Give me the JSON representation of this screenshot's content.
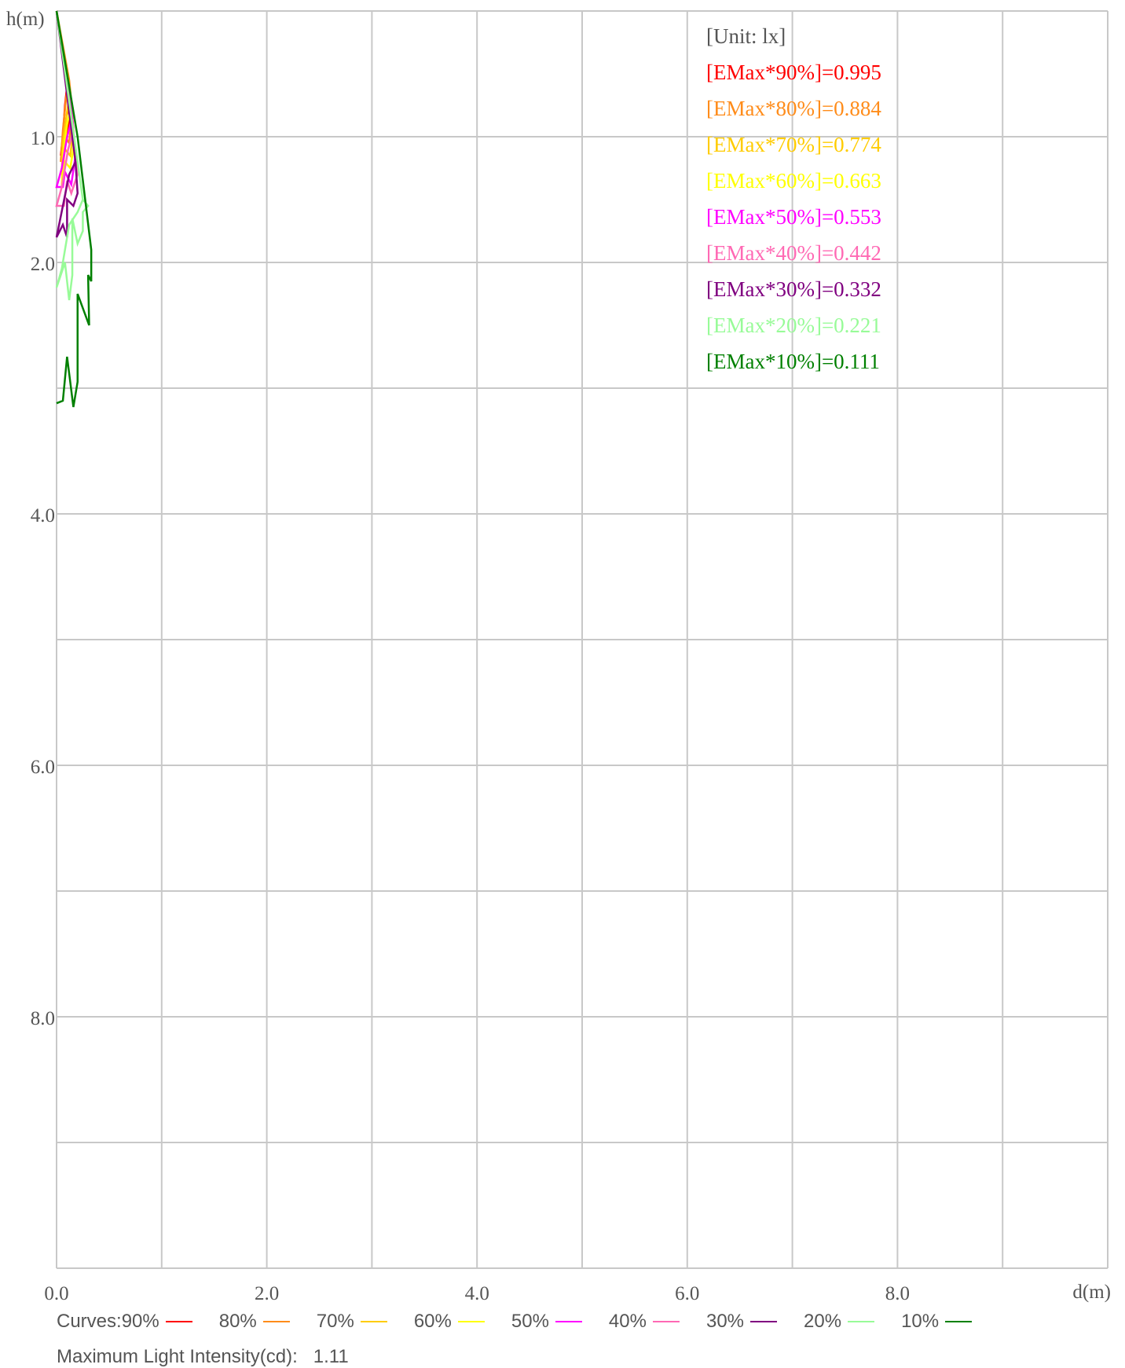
{
  "chart_data": {
    "type": "line",
    "xlabel": "d(m)",
    "ylabel": "h(m)",
    "xlim": [
      0,
      10
    ],
    "ylim": [
      0,
      10
    ],
    "y_inverted": true,
    "grid": true,
    "x_ticks": [
      "0.0",
      "2.0",
      "4.0",
      "6.0",
      "8.0"
    ],
    "y_ticks": [
      "1.0",
      "2.0",
      "4.0",
      "6.0",
      "8.0"
    ],
    "unit_label": "[Unit: lx]",
    "legend_position": "top-right",
    "series": [
      {
        "name": "[EMax*90%]=0.995",
        "color": "#ff0000",
        "points": [
          [
            0.0,
            0.0
          ],
          [
            0.1,
            0.6
          ],
          [
            0.12,
            0.85
          ],
          [
            0.1,
            1.0
          ],
          [
            0.07,
            0.95
          ],
          [
            0.04,
            1.15
          ],
          [
            0.06,
            1.0
          ],
          [
            0.08,
            0.75
          ],
          [
            0.1,
            0.6
          ]
        ]
      },
      {
        "name": "[EMax*80%]=0.884",
        "color": "#ff8c1a",
        "points": [
          [
            0.0,
            0.0
          ],
          [
            0.12,
            0.55
          ],
          [
            0.15,
            0.8
          ],
          [
            0.12,
            1.05
          ],
          [
            0.08,
            1.0
          ],
          [
            0.04,
            1.2
          ],
          [
            0.06,
            0.95
          ],
          [
            0.09,
            0.7
          ],
          [
            0.12,
            0.55
          ]
        ]
      },
      {
        "name": "[EMax*70%]=0.774",
        "color": "#ffcc00",
        "points": [
          [
            0.0,
            0.0
          ],
          [
            0.13,
            0.65
          ],
          [
            0.16,
            0.95
          ],
          [
            0.13,
            1.15
          ],
          [
            0.08,
            1.1
          ],
          [
            0.05,
            1.3
          ],
          [
            0.06,
            1.05
          ],
          [
            0.1,
            0.8
          ],
          [
            0.13,
            0.65
          ]
        ]
      },
      {
        "name": "[EMax*60%]=0.663",
        "color": "#ffff00",
        "points": [
          [
            0.0,
            0.0
          ],
          [
            0.14,
            0.75
          ],
          [
            0.17,
            1.05
          ],
          [
            0.13,
            1.25
          ],
          [
            0.08,
            1.2
          ],
          [
            0.05,
            1.4
          ],
          [
            0.06,
            1.15
          ],
          [
            0.1,
            0.9
          ],
          [
            0.14,
            0.75
          ]
        ]
      },
      {
        "name": "[EMax*50%]=0.553",
        "color": "#ff00ff",
        "points": [
          [
            0.0,
            0.0
          ],
          [
            0.15,
            0.85
          ],
          [
            0.18,
            1.15
          ],
          [
            0.14,
            1.38
          ],
          [
            0.08,
            1.28
          ],
          [
            0.06,
            1.4
          ],
          [
            0.0,
            1.4
          ],
          [
            0.05,
            1.25
          ],
          [
            0.1,
            1.0
          ],
          [
            0.15,
            0.85
          ]
        ]
      },
      {
        "name": "[EMax*40%]=0.442",
        "color": "#ff69b4",
        "points": [
          [
            0.0,
            0.0
          ],
          [
            0.16,
            0.95
          ],
          [
            0.2,
            1.3
          ],
          [
            0.14,
            1.45
          ],
          [
            0.1,
            1.35
          ],
          [
            0.07,
            1.55
          ],
          [
            0.0,
            1.55
          ],
          [
            0.05,
            1.4
          ],
          [
            0.11,
            1.1
          ],
          [
            0.16,
            0.95
          ]
        ]
      },
      {
        "name": "[EMax*30%]=0.332",
        "color": "#800080",
        "points": [
          [
            0.0,
            0.0
          ],
          [
            0.18,
            1.2
          ],
          [
            0.2,
            1.45
          ],
          [
            0.16,
            1.55
          ],
          [
            0.1,
            1.5
          ],
          [
            0.1,
            1.8
          ],
          [
            0.06,
            1.7
          ],
          [
            0.0,
            1.8
          ],
          [
            0.06,
            1.55
          ],
          [
            0.12,
            1.3
          ],
          [
            0.18,
            1.2
          ]
        ]
      },
      {
        "name": "[EMax*20%]=0.221",
        "color": "#98fb98",
        "points": [
          [
            0.0,
            0.0
          ],
          [
            0.25,
            1.5
          ],
          [
            0.3,
            1.55
          ],
          [
            0.25,
            1.6
          ],
          [
            0.25,
            1.75
          ],
          [
            0.2,
            1.85
          ],
          [
            0.15,
            1.65
          ],
          [
            0.15,
            2.1
          ],
          [
            0.12,
            2.3
          ],
          [
            0.08,
            2.0
          ],
          [
            0.0,
            2.2
          ],
          [
            0.05,
            2.05
          ],
          [
            0.12,
            1.7
          ],
          [
            0.2,
            1.6
          ],
          [
            0.25,
            1.5
          ]
        ]
      },
      {
        "name": "[EMax*10%]=0.111",
        "color": "#008000",
        "points": [
          [
            0.0,
            0.0
          ],
          [
            0.2,
            1.0
          ],
          [
            0.33,
            1.9
          ],
          [
            0.33,
            2.15
          ],
          [
            0.3,
            2.1
          ],
          [
            0.31,
            2.5
          ],
          [
            0.2,
            2.25
          ],
          [
            0.2,
            2.95
          ],
          [
            0.16,
            3.15
          ],
          [
            0.1,
            2.75
          ],
          [
            0.06,
            3.1
          ],
          [
            0.0,
            3.12
          ]
        ]
      }
    ]
  },
  "footer": {
    "curves_label": "Curves:",
    "curve_keys": [
      {
        "label": "90%",
        "color": "#ff0000"
      },
      {
        "label": "80%",
        "color": "#ff8c1a"
      },
      {
        "label": "70%",
        "color": "#ffcc00"
      },
      {
        "label": "60%",
        "color": "#ffff00"
      },
      {
        "label": "50%",
        "color": "#ff00ff"
      },
      {
        "label": "40%",
        "color": "#ff69b4"
      },
      {
        "label": "30%",
        "color": "#800080"
      },
      {
        "label": "20%",
        "color": "#98fb98"
      },
      {
        "label": "10%",
        "color": "#008000"
      }
    ],
    "intensity_label": "Maximum Light Intensity(cd):",
    "intensity_value": "1.11"
  },
  "colors": {
    "grid": "#c8c8c8",
    "axis_text": "#555555",
    "unit_label": "#555555"
  }
}
